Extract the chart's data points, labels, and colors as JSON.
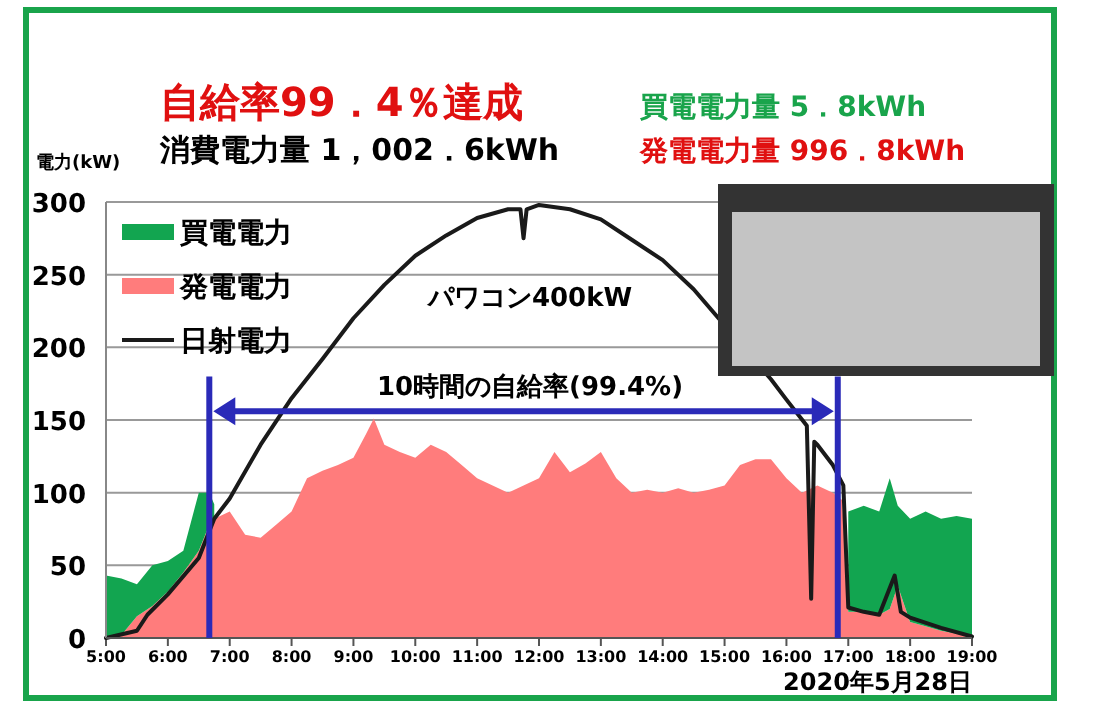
{
  "chart_data": {
    "type": "area",
    "stacked": true,
    "title": "自給率99．4％達成",
    "subtitle": "消費電力量 1，002．6kWh",
    "ylabel": "電力(kW)",
    "annotations": [
      "買電電力量 5．8kWh",
      "発電電力量 996．8kWh",
      "パワコン400kW",
      "2020年5月28日",
      "10時間の自給率(99.4%)"
    ],
    "x": [
      5,
      5.25,
      5.5,
      5.75,
      6,
      6.25,
      6.5,
      6.67,
      6.75,
      7,
      7.25,
      7.5,
      7.75,
      8,
      8.25,
      8.5,
      8.75,
      9,
      9.2,
      9.33,
      9.5,
      9.75,
      10,
      10.25,
      10.5,
      10.75,
      11,
      11.25,
      11.5,
      11.75,
      12,
      12.25,
      12.5,
      12.75,
      13,
      13.25,
      13.5,
      13.75,
      14,
      14.25,
      14.5,
      14.75,
      15,
      15.25,
      15.5,
      15.75,
      16,
      16.25,
      16.5,
      16.75,
      16.9,
      17,
      17.25,
      17.5,
      17.67,
      17.8,
      18,
      18.25,
      18.5,
      18.75,
      19
    ],
    "series": [
      {
        "name": "発電電力",
        "color": "#ff7c7c",
        "values": [
          0,
          2,
          15,
          22,
          32,
          45,
          60,
          78,
          82,
          87,
          71,
          69,
          78,
          87,
          110,
          115,
          119,
          124,
          140,
          151,
          133,
          128,
          124,
          133,
          128,
          119,
          110,
          105,
          100,
          105,
          110,
          128,
          114,
          120,
          128,
          110,
          100,
          102,
          100,
          103,
          100,
          102,
          105,
          119,
          123,
          123,
          110,
          100,
          105,
          100,
          95,
          18,
          18,
          16,
          20,
          36,
          11,
          8,
          5,
          3,
          1
        ]
      },
      {
        "name": "買電電力",
        "color": "#12a550",
        "values": [
          43,
          39,
          22,
          28,
          21,
          15,
          40,
          22,
          10,
          null,
          null,
          null,
          null,
          null,
          null,
          null,
          null,
          null,
          null,
          null,
          null,
          null,
          null,
          null,
          null,
          null,
          null,
          null,
          null,
          null,
          null,
          null,
          null,
          null,
          null,
          null,
          null,
          null,
          null,
          null,
          null,
          null,
          null,
          null,
          null,
          null,
          null,
          null,
          null,
          null,
          null,
          69,
          73,
          71,
          90,
          55,
          71,
          79,
          77,
          81,
          81
        ]
      },
      {
        "name": "日射電力",
        "type": "line",
        "color": "#1a1a1a",
        "x": [
          5,
          5.5,
          5.67,
          6,
          6.5,
          6.75,
          7,
          7.5,
          8,
          8.5,
          9,
          9.5,
          10,
          10.5,
          11,
          11.5,
          11.7,
          11.75,
          11.8,
          12,
          12.5,
          13,
          13.5,
          14,
          14.5,
          15.75,
          16,
          16.33,
          16.4,
          16.45,
          16.5,
          16.75,
          16.92,
          17,
          17.25,
          17.5,
          17.75,
          17.85,
          18,
          18.5,
          19
        ],
        "values": [
          0,
          5,
          16,
          30,
          55,
          82,
          96,
          133,
          165,
          192,
          220,
          243,
          263,
          277,
          289,
          295,
          295,
          275,
          295,
          298,
          295,
          288,
          274,
          260,
          240,
          178,
          164,
          146,
          27,
          135,
          133,
          119,
          105,
          21,
          18,
          16,
          43,
          18,
          14,
          7,
          1
        ]
      }
    ],
    "ref_lines": [
      {
        "axis": "x",
        "value": 6.67,
        "color": "#2a2ab8"
      },
      {
        "axis": "x",
        "value": 16.83,
        "color": "#2a2ab8"
      }
    ],
    "xlim": [
      5,
      19
    ],
    "xticks": [
      {
        "value": 5,
        "label": "5:00"
      },
      {
        "value": 6,
        "label": "6:00"
      },
      {
        "value": 7,
        "label": "7:00"
      },
      {
        "value": 8,
        "label": "8:00"
      },
      {
        "value": 9,
        "label": "9:00"
      },
      {
        "value": 10,
        "label": "10:00"
      },
      {
        "value": 11,
        "label": "11:00"
      },
      {
        "value": 12,
        "label": "12:00"
      },
      {
        "value": 13,
        "label": "13:00"
      },
      {
        "value": 14,
        "label": "14:00"
      },
      {
        "value": 15,
        "label": "15:00"
      },
      {
        "value": 16,
        "label": "16:00"
      },
      {
        "value": 17,
        "label": "17:00"
      },
      {
        "value": 18,
        "label": "18:00"
      },
      {
        "value": 19,
        "label": "19:00"
      }
    ],
    "ylim": [
      0,
      300
    ],
    "yticks": [
      0,
      50,
      100,
      150,
      200,
      250,
      300
    ],
    "grid": "y",
    "legend": "top left"
  }
}
